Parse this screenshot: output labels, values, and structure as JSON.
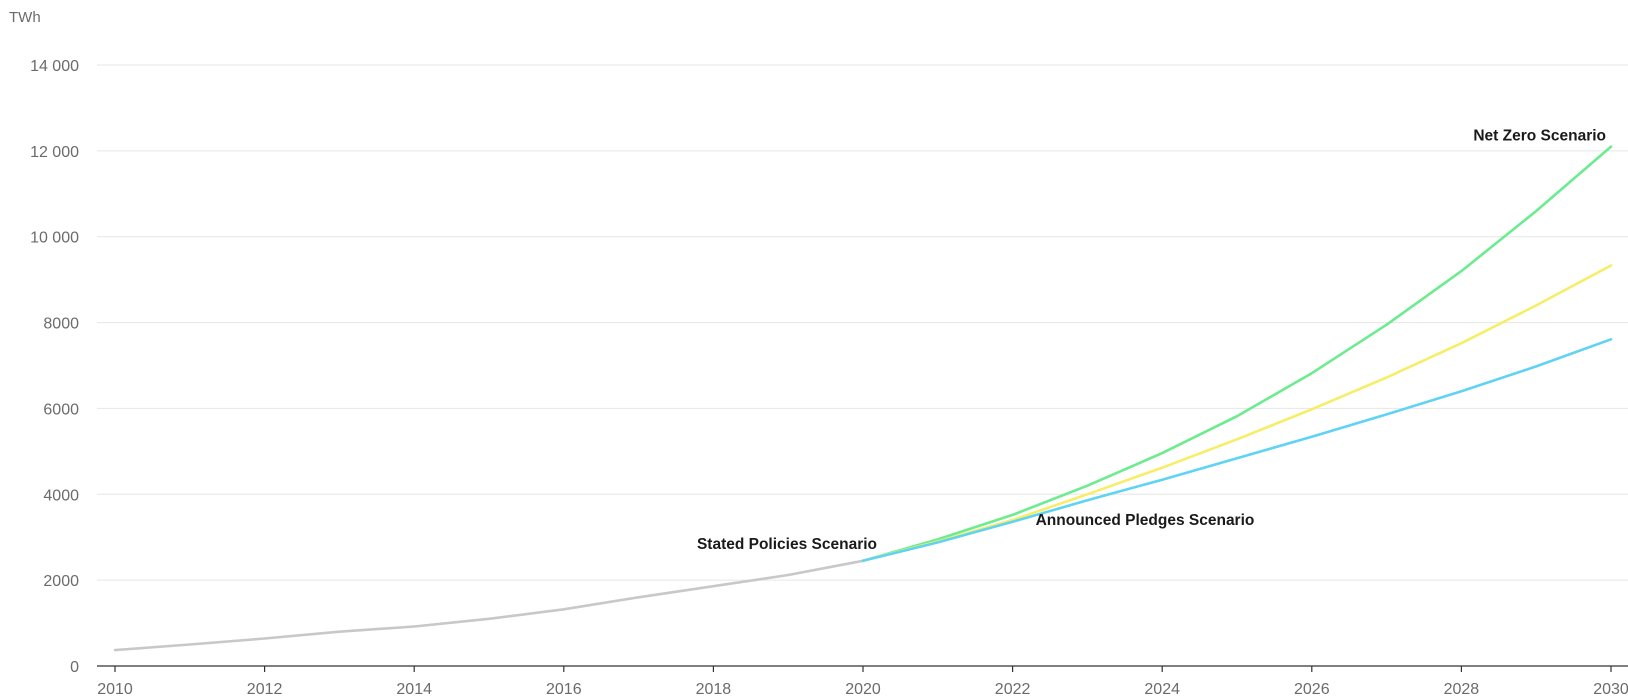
{
  "chart_data": {
    "type": "line",
    "title": "",
    "xlabel": "",
    "ylabel": "TWh",
    "xlim": [
      2010,
      2030
    ],
    "ylim": [
      0,
      14000
    ],
    "grid": true,
    "x_ticks": [
      2010,
      2012,
      2014,
      2016,
      2018,
      2020,
      2022,
      2024,
      2026,
      2028,
      2030
    ],
    "y_ticks": [
      0,
      2000,
      4000,
      6000,
      8000,
      10000,
      12000,
      14000
    ],
    "y_tick_labels": [
      "0",
      "2000",
      "4000",
      "6000",
      "8000",
      "10 000",
      "12 000",
      "14 000"
    ],
    "series": [
      {
        "name": "",
        "color": "#c8c8c8",
        "x": [
          2010,
          2011,
          2012,
          2013,
          2014,
          2015,
          2016,
          2017,
          2018,
          2019,
          2020
        ],
        "values": [
          370,
          500,
          640,
          800,
          920,
          1100,
          1320,
          1600,
          1860,
          2120,
          2450
        ]
      },
      {
        "name": "Net Zero Scenario",
        "color": "#6ceb8f",
        "x": [
          2020,
          2021,
          2022,
          2023,
          2024,
          2025,
          2026,
          2027,
          2028,
          2029,
          2030
        ],
        "values": [
          2450,
          2950,
          3520,
          4200,
          4960,
          5820,
          6820,
          7950,
          9200,
          10600,
          12100
        ]
      },
      {
        "name": "Announced Pledges Scenario",
        "color": "#f6ee66",
        "x": [
          2020,
          2021,
          2022,
          2023,
          2024,
          2025,
          2026,
          2027,
          2028,
          2029,
          2030
        ],
        "values": [
          2450,
          2900,
          3400,
          4000,
          4620,
          5280,
          5980,
          6720,
          7520,
          8400,
          9330
        ]
      },
      {
        "name": "Stated Policies Scenario",
        "color": "#5fd3f3",
        "x": [
          2020,
          2021,
          2022,
          2023,
          2024,
          2025,
          2026,
          2027,
          2028,
          2029,
          2030
        ],
        "values": [
          2450,
          2880,
          3360,
          3860,
          4340,
          4840,
          5340,
          5860,
          6400,
          6980,
          7610
        ]
      }
    ],
    "annotations": [
      {
        "text": "Net Zero Scenario",
        "series": "Net Zero Scenario"
      },
      {
        "text": "Announced Pledges Scenario",
        "series": "Announced Pledges Scenario"
      },
      {
        "text": "Stated Policies Scenario",
        "series": "Stated Policies Scenario"
      }
    ]
  }
}
